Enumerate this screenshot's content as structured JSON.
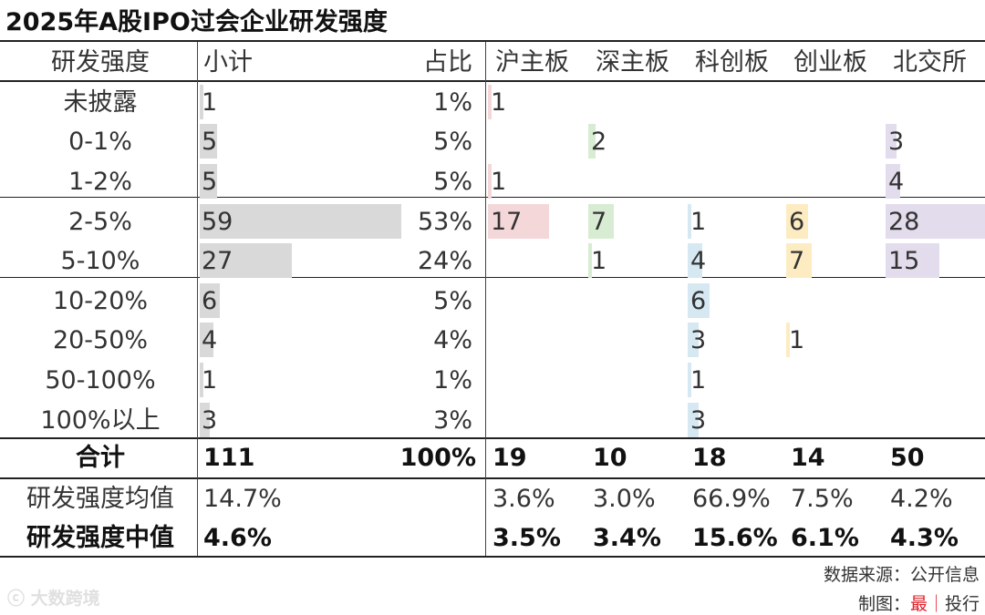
{
  "title": "2025年A股IPO过会企业研发强度",
  "header": {
    "label": "研发强度",
    "subtotal": "小计",
    "share": "占比",
    "boards": [
      "沪主板",
      "深主板",
      "科创板",
      "创业板",
      "北交所"
    ]
  },
  "chart_data": {
    "type": "table",
    "title": "2025年A股IPO过会企业研发强度",
    "rows": [
      {
        "label": "未披露",
        "subtotal": 1,
        "share": "1%",
        "boards": [
          1,
          null,
          null,
          null,
          null
        ]
      },
      {
        "label": "0-1%",
        "subtotal": 5,
        "share": "5%",
        "boards": [
          null,
          2,
          null,
          null,
          3
        ]
      },
      {
        "label": "1-2%",
        "subtotal": 5,
        "share": "5%",
        "boards": [
          1,
          null,
          null,
          null,
          4
        ]
      },
      {
        "label": "2-5%",
        "subtotal": 59,
        "share": "53%",
        "boards": [
          17,
          7,
          1,
          6,
          28
        ]
      },
      {
        "label": "5-10%",
        "subtotal": 27,
        "share": "24%",
        "boards": [
          null,
          1,
          4,
          7,
          15
        ]
      },
      {
        "label": "10-20%",
        "subtotal": 6,
        "share": "5%",
        "boards": [
          null,
          null,
          6,
          null,
          null
        ]
      },
      {
        "label": "20-50%",
        "subtotal": 4,
        "share": "4%",
        "boards": [
          null,
          null,
          3,
          1,
          null
        ]
      },
      {
        "label": "50-100%",
        "subtotal": 1,
        "share": "1%",
        "boards": [
          null,
          null,
          1,
          null,
          null
        ]
      },
      {
        "label": "100%以上",
        "subtotal": 3,
        "share": "3%",
        "boards": [
          null,
          null,
          3,
          null,
          null
        ]
      }
    ],
    "total": {
      "label": "合计",
      "subtotal": "111",
      "share": "100%",
      "boards": [
        "19",
        "10",
        "18",
        "14",
        "50"
      ]
    },
    "mean": {
      "label": "研发强度均值",
      "subtotal": "14.7%",
      "boards": [
        "3.6%",
        "3.0%",
        "66.9%",
        "7.5%",
        "4.2%"
      ]
    },
    "median": {
      "label": "研发强度中值",
      "subtotal": "4.6%",
      "boards": [
        "3.5%",
        "3.4%",
        "15.6%",
        "6.1%",
        "4.3%"
      ]
    },
    "colors": {
      "subtotal": "#d9d9d9",
      "boards": [
        "#f4d7d9",
        "#d8ecd3",
        "#d6e8f2",
        "#fdecc2",
        "#e3dcec"
      ]
    }
  },
  "footer": {
    "source": "数据来源：公开信息",
    "credit_prefix": "制图：",
    "credit_accent": "最",
    "credit_sep": "｜",
    "credit_suffix": "投行",
    "watermark": "大数跨境"
  }
}
